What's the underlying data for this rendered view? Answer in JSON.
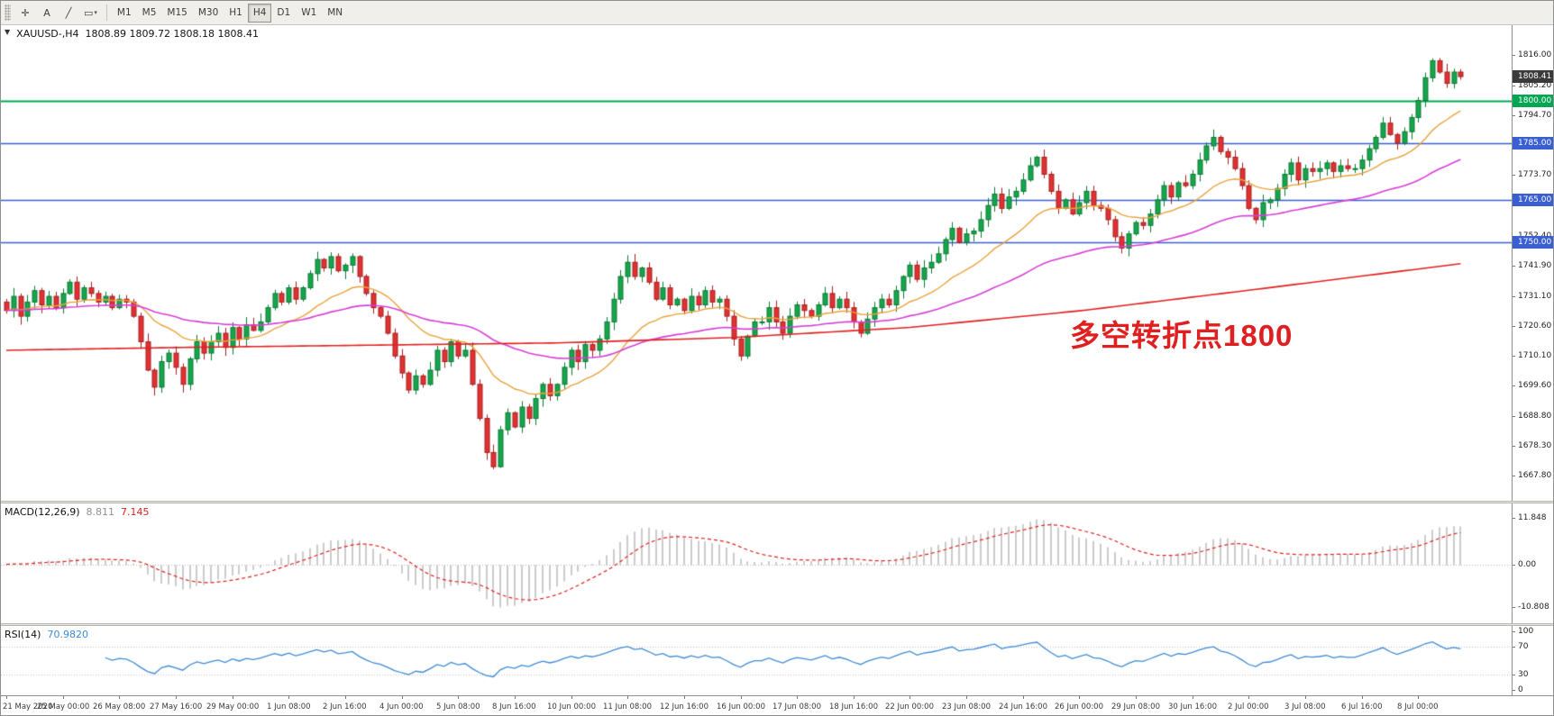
{
  "icons": {
    "collapse": "▼",
    "caret": "▾",
    "cursor": "✛",
    "trendline": "╱",
    "shapes": "▭"
  },
  "toolbar": {
    "text_tool": "A",
    "timeframes": [
      "M1",
      "M5",
      "M15",
      "M30",
      "H1",
      "H4",
      "D1",
      "W1",
      "MN"
    ],
    "active_timeframe": "H4"
  },
  "header": {
    "symbol": "XAUUSD-,H4",
    "ohlc": "1808.89 1809.72 1808.18 1808.41"
  },
  "annotation": {
    "text": "多空转折点1800",
    "color": "#e02020"
  },
  "price_axis": {
    "ticks": [
      1816.0,
      1805.2,
      1794.7,
      1773.7,
      1752.4,
      1741.9,
      1731.1,
      1720.6,
      1710.1,
      1699.6,
      1688.8,
      1678.3,
      1667.8
    ],
    "badges": [
      {
        "label": "1808.41",
        "value": 1808.41,
        "bg": "#3a3a3a",
        "name": "current-price"
      },
      {
        "label": "1800.00",
        "value": 1800.0,
        "bg": "#00a651",
        "name": "level-1800"
      },
      {
        "label": "1785.00",
        "value": 1785.0,
        "bg": "#3a5fd0",
        "name": "level-1785"
      },
      {
        "label": "1765.00",
        "value": 1765.0,
        "bg": "#3a5fd0",
        "name": "level-1765"
      },
      {
        "label": "1750.00",
        "value": 1750.0,
        "bg": "#3a5fd0",
        "name": "level-1750"
      }
    ]
  },
  "macd": {
    "label": "MACD(12,26,9)",
    "value1": "8.811",
    "value2": "7.145",
    "scale": [
      "11.848",
      "0.00",
      "-10.808"
    ],
    "scale_values": [
      11.848,
      0,
      -10.808
    ]
  },
  "rsi": {
    "label": "RSI(14)",
    "value": "70.9820",
    "scale": [
      "100",
      "70",
      "30",
      "0"
    ],
    "scale_values": [
      100,
      70,
      30,
      0
    ],
    "levels": [
      70,
      30
    ]
  },
  "time_axis": {
    "labels": [
      "21 May 2020",
      "25 May 00:00",
      "26 May 08:00",
      "27 May 16:00",
      "29 May 00:00",
      "1 Jun 08:00",
      "2 Jun 16:00",
      "4 Jun 00:00",
      "5 Jun 08:00",
      "8 Jun 16:00",
      "10 Jun 00:00",
      "11 Jun 08:00",
      "12 Jun 16:00",
      "16 Jun 00:00",
      "17 Jun 08:00",
      "18 Jun 16:00",
      "22 Jun 00:00",
      "23 Jun 08:00",
      "24 Jun 16:00",
      "26 Jun 00:00",
      "29 Jun 08:00",
      "30 Jun 16:00",
      "2 Jul 00:00",
      "3 Jul 08:00",
      "6 Jul 16:00",
      "8 Jul 00:00"
    ]
  },
  "chart_data": {
    "type": "candlestick",
    "symbol": "XAUUSD",
    "timeframe": "H4",
    "title": "XAUUSD-,H4 1808.89 1809.72 1808.18 1808.41",
    "price_range": [
      1659,
      1826.5
    ],
    "first_open": 1729,
    "closes": [
      1726,
      1731,
      1724,
      1729,
      1733,
      1728,
      1731,
      1727,
      1732,
      1736,
      1730,
      1734,
      1732,
      1729,
      1731,
      1727,
      1730,
      1729,
      1724,
      1715,
      1705,
      1699,
      1708,
      1711,
      1706,
      1700,
      1709,
      1715,
      1711,
      1715,
      1718,
      1713,
      1720,
      1716,
      1721,
      1719,
      1722,
      1727,
      1732,
      1729,
      1734,
      1730,
      1734,
      1739,
      1744,
      1741,
      1745,
      1740,
      1742,
      1745,
      1738,
      1732,
      1727,
      1724,
      1718,
      1710,
      1704,
      1698,
      1703,
      1700,
      1705,
      1712,
      1708,
      1715,
      1710,
      1712,
      1700,
      1688,
      1676,
      1671,
      1684,
      1690,
      1685,
      1692,
      1688,
      1695,
      1700,
      1696,
      1700,
      1706,
      1712,
      1708,
      1714,
      1712,
      1716,
      1722,
      1730,
      1738,
      1743,
      1738,
      1741,
      1736,
      1730,
      1734,
      1728,
      1730,
      1726,
      1731,
      1728,
      1733,
      1729,
      1730,
      1724,
      1716,
      1710,
      1717,
      1722,
      1722,
      1727,
      1722,
      1718,
      1724,
      1728,
      1726,
      1724,
      1728,
      1732,
      1727,
      1730,
      1727,
      1722,
      1718,
      1723,
      1727,
      1730,
      1728,
      1733,
      1738,
      1742,
      1737,
      1741,
      1743,
      1746,
      1751,
      1755,
      1750,
      1753,
      1754,
      1758,
      1763,
      1767,
      1762,
      1766,
      1768,
      1772,
      1777,
      1780,
      1774,
      1768,
      1762,
      1765,
      1760,
      1764,
      1768,
      1763,
      1762,
      1758,
      1752,
      1748,
      1753,
      1757,
      1756,
      1760,
      1765,
      1770,
      1766,
      1771,
      1770,
      1774,
      1779,
      1784,
      1787,
      1782,
      1780,
      1776,
      1770,
      1762,
      1758,
      1764,
      1765,
      1769,
      1774,
      1778,
      1772,
      1776,
      1775,
      1776,
      1778,
      1775,
      1777,
      1776,
      1776,
      1779,
      1783,
      1787,
      1792,
      1788,
      1785,
      1789,
      1794,
      1800,
      1808,
      1814,
      1810,
      1806,
      1810,
      1808.4
    ],
    "hlines": [
      {
        "value": 1800,
        "color": "#00a651",
        "width": 2
      },
      {
        "value": 1785,
        "color": "#3a5fd0",
        "width": 1.6
      },
      {
        "value": 1765,
        "color": "#3a5fd0",
        "width": 1.6
      },
      {
        "value": 1750,
        "color": "#3a5fd0",
        "width": 1.6
      }
    ],
    "moving_averages": [
      {
        "name": "fast",
        "period": 18,
        "color": "#e8a33d"
      },
      {
        "name": "medium",
        "period": 55,
        "color": "#d63fd6"
      },
      {
        "name": "slow",
        "color": "#e02020",
        "anchors": [
          [
            0,
            1712
          ],
          [
            0.12,
            1713
          ],
          [
            0.25,
            1713.8
          ],
          [
            0.38,
            1714.6
          ],
          [
            0.5,
            1716.5
          ],
          [
            0.62,
            1720
          ],
          [
            0.74,
            1726
          ],
          [
            0.86,
            1733.5
          ],
          [
            1,
            1742.5
          ]
        ]
      }
    ],
    "macd_range": [
      -15,
      15.5
    ],
    "rsi_range": [
      0,
      100
    ],
    "colors": {
      "up": "#17a54c",
      "up_edge": "#0a7a33",
      "down": "#e03232",
      "down_edge": "#a51f1f",
      "macd_hist": "#bcbcbc",
      "macd_signal": "#e02020",
      "rsi_line": "#3d8bd4"
    }
  }
}
